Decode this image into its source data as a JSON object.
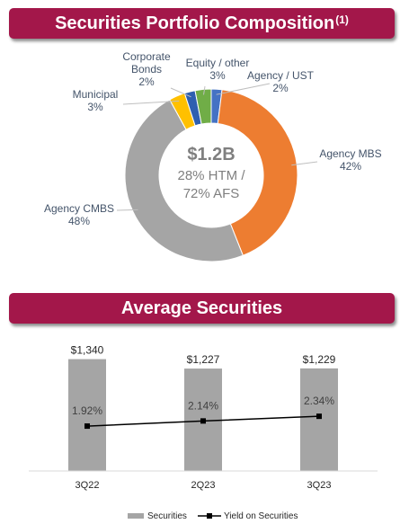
{
  "sections": {
    "composition_title": "Securities Portfolio Composition",
    "composition_title_note": "(1)",
    "average_title": "Average Securities"
  },
  "donut_center": {
    "total": "$1.2B",
    "line1": "28% HTM /",
    "line2": "72% AFS"
  },
  "chart_data": [
    {
      "type": "pie",
      "variant": "donut",
      "title": "Securities Portfolio Composition",
      "slices": [
        {
          "label": "Agency / UST",
          "value": 2,
          "display": "2%",
          "color": "#4472c4"
        },
        {
          "label": "Agency MBS",
          "value": 42,
          "display": "42%",
          "color": "#ed7d31"
        },
        {
          "label": "Agency CMBS",
          "value": 48,
          "display": "48%",
          "color": "#a5a5a5"
        },
        {
          "label": "Municipal",
          "value": 3,
          "display": "3%",
          "color": "#ffc000"
        },
        {
          "label": "Corporate Bonds",
          "label_lines": [
            "Corporate",
            "Bonds"
          ],
          "value": 2,
          "display": "2%",
          "color": "#2e5fb0"
        },
        {
          "label": "Equity / other",
          "value": 3,
          "display": "3%",
          "color": "#70ad47"
        }
      ],
      "legend": "none"
    },
    {
      "type": "bar",
      "title": "Average Securities",
      "categories": [
        "3Q22",
        "2Q23",
        "3Q23"
      ],
      "series": [
        {
          "name": "Securities",
          "kind": "bar",
          "values": [
            1340,
            1227,
            1229
          ],
          "labels": [
            "$1,340",
            "$1,227",
            "$1,229"
          ],
          "color": "#a5a5a5"
        },
        {
          "name": "Yield on Securities",
          "kind": "line",
          "values": [
            1.92,
            2.14,
            2.34
          ],
          "labels": [
            "1.92%",
            "2.14%",
            "2.34%"
          ],
          "color": "#000000"
        }
      ],
      "ylim": [
        0,
        1400
      ],
      "y2lim": [
        0,
        5
      ],
      "grid": false,
      "legend": "bottom"
    }
  ]
}
